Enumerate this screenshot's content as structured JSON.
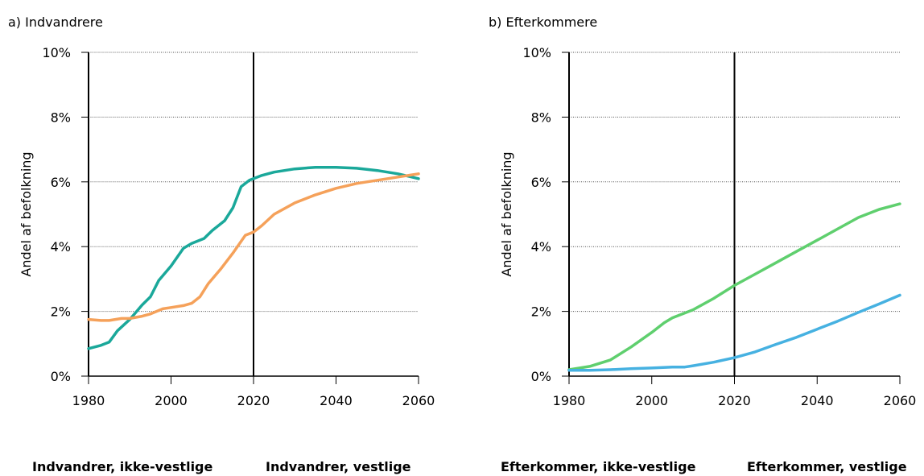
{
  "chart_data": [
    {
      "type": "line",
      "title": "a) Indvandrere",
      "ylabel": "Andel af befolkning",
      "xlim": [
        1980,
        2060
      ],
      "xticks": [
        1980,
        2000,
        2020,
        2040,
        2060
      ],
      "ylim": [
        0,
        10
      ],
      "yticks": [
        {
          "value": 0,
          "label": "0%"
        },
        {
          "value": 2,
          "label": "2%"
        },
        {
          "value": 4,
          "label": "4%"
        },
        {
          "value": 6,
          "label": "6%"
        },
        {
          "value": 8,
          "label": "8%"
        },
        {
          "value": 10,
          "label": "10%"
        }
      ],
      "grid": true,
      "vline": 2020,
      "series": [
        {
          "name": "Indvandrer, ikke-vestlige",
          "color": "#1aa89a",
          "x": [
            1980,
            1983,
            1985,
            1987,
            1990,
            1993,
            1995,
            1997,
            2000,
            2003,
            2005,
            2008,
            2010,
            2013,
            2015,
            2017,
            2019,
            2020,
            2022,
            2025,
            2030,
            2035,
            2040,
            2045,
            2050,
            2055,
            2060
          ],
          "values": [
            0.85,
            0.95,
            1.05,
            1.4,
            1.75,
            2.2,
            2.45,
            2.95,
            3.4,
            3.95,
            4.1,
            4.25,
            4.5,
            4.8,
            5.2,
            5.85,
            6.05,
            6.1,
            6.2,
            6.3,
            6.4,
            6.45,
            6.45,
            6.42,
            6.35,
            6.25,
            6.1
          ]
        },
        {
          "name": "Indvandrer, vestlige",
          "color": "#f5a15a",
          "x": [
            1980,
            1983,
            1985,
            1988,
            1990,
            1993,
            1995,
            1998,
            2000,
            2003,
            2005,
            2007,
            2009,
            2012,
            2015,
            2018,
            2020,
            2022,
            2025,
            2030,
            2035,
            2040,
            2045,
            2050,
            2055,
            2060
          ],
          "values": [
            1.75,
            1.72,
            1.72,
            1.78,
            1.78,
            1.85,
            1.92,
            2.08,
            2.12,
            2.18,
            2.25,
            2.45,
            2.85,
            3.3,
            3.8,
            4.35,
            4.45,
            4.65,
            5.0,
            5.35,
            5.6,
            5.8,
            5.95,
            6.05,
            6.15,
            6.25
          ]
        }
      ]
    },
    {
      "type": "line",
      "title": "b) Efterkommere",
      "ylabel": "Andel af befolkning",
      "xlim": [
        1980,
        2060
      ],
      "xticks": [
        1980,
        2000,
        2020,
        2040,
        2060
      ],
      "ylim": [
        0,
        10
      ],
      "yticks": [
        {
          "value": 0,
          "label": "0%"
        },
        {
          "value": 2,
          "label": "2%"
        },
        {
          "value": 4,
          "label": "4%"
        },
        {
          "value": 6,
          "label": "6%"
        },
        {
          "value": 8,
          "label": "8%"
        },
        {
          "value": 10,
          "label": "10%"
        }
      ],
      "grid": true,
      "vline": 2020,
      "series": [
        {
          "name": "Efterkommer, ikke-vestlige",
          "color": "#5fcf6e",
          "x": [
            1980,
            1985,
            1990,
            1995,
            2000,
            2003,
            2005,
            2010,
            2015,
            2020,
            2025,
            2030,
            2035,
            2040,
            2045,
            2050,
            2055,
            2060
          ],
          "values": [
            0.2,
            0.3,
            0.5,
            0.9,
            1.35,
            1.65,
            1.8,
            2.05,
            2.4,
            2.8,
            3.15,
            3.5,
            3.85,
            4.2,
            4.55,
            4.9,
            5.15,
            5.32
          ]
        },
        {
          "name": "Efterkommer, vestlige",
          "color": "#46b1e1",
          "x": [
            1980,
            1985,
            1990,
            1995,
            2000,
            2005,
            2008,
            2010,
            2015,
            2020,
            2025,
            2030,
            2035,
            2040,
            2045,
            2050,
            2055,
            2060
          ],
          "values": [
            0.18,
            0.18,
            0.2,
            0.23,
            0.25,
            0.28,
            0.28,
            0.32,
            0.43,
            0.57,
            0.75,
            0.98,
            1.2,
            1.45,
            1.7,
            1.97,
            2.23,
            2.5
          ]
        }
      ]
    }
  ]
}
